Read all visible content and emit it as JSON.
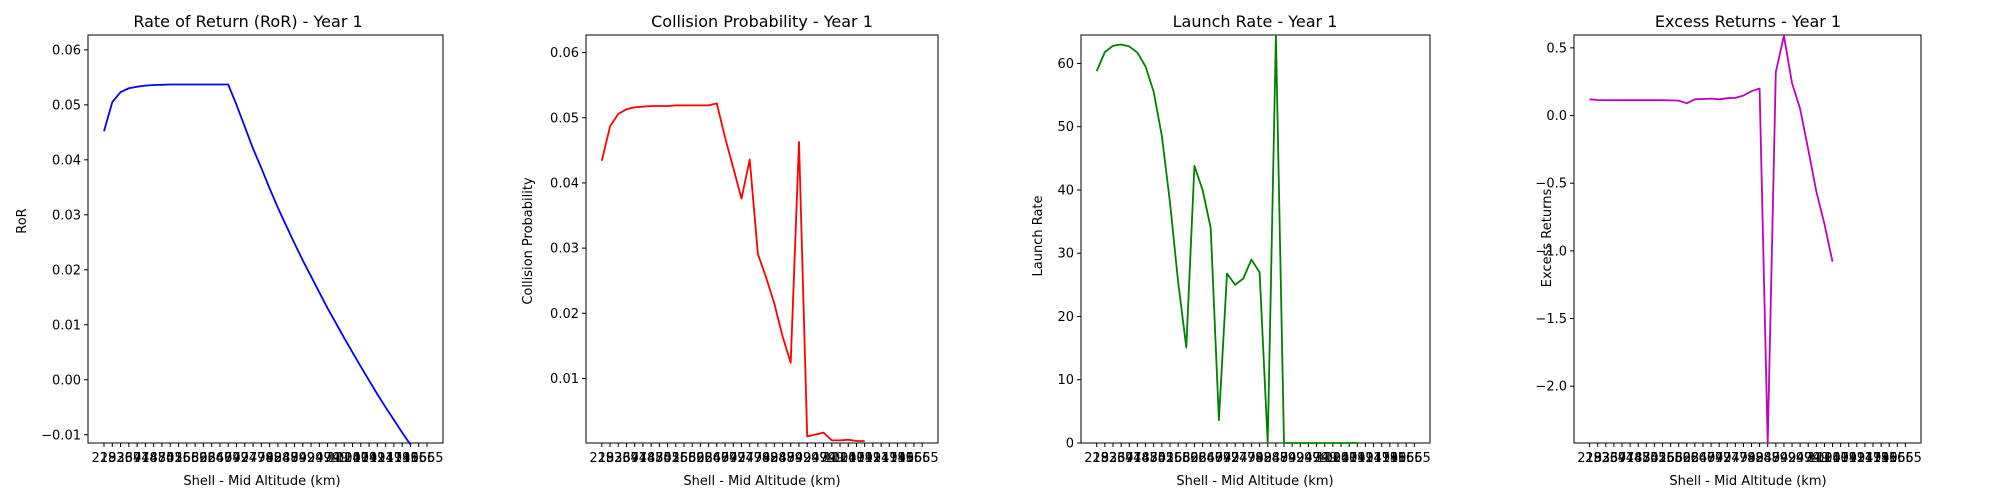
{
  "chart_data": [
    {
      "type": "line",
      "title": "Rate of Return (RoR) - Year 1",
      "xlabel": "Shell - Mid Altitude (km)",
      "ylabel": "RoR",
      "color": "#0000ff",
      "ylim": [
        -0.0115,
        0.0627
      ],
      "yticks": [
        -0.01,
        0.0,
        0.01,
        0.02,
        0.03,
        0.04,
        0.05,
        0.06
      ],
      "ytick_labels": [
        "−0.01",
        "0.00",
        "0.01",
        "0.02",
        "0.03",
        "0.04",
        "0.05",
        "0.06"
      ],
      "x": [
        218,
        264,
        310,
        356,
        402,
        448,
        494,
        540,
        586,
        632,
        678,
        724,
        770,
        816,
        862,
        908,
        954,
        1000,
        1046,
        1092,
        1138,
        1184,
        1230,
        1276,
        1322,
        1368,
        1414,
        1460,
        1506,
        1552,
        1598,
        1644,
        1690,
        1736,
        1782,
        1828,
        1874,
        1920,
        1966,
        2012
      ],
      "values": [
        0.0452,
        0.0505,
        0.0523,
        0.053,
        0.0533,
        0.0535,
        0.0536,
        0.05365,
        0.0537,
        0.0537,
        0.0537,
        0.0537,
        0.0537,
        0.0537,
        0.0537,
        0.0537,
        0.05,
        0.046,
        0.042,
        0.0385,
        0.0348,
        0.0313,
        0.028,
        0.0248,
        0.0217,
        0.0188,
        0.0159,
        0.013,
        0.0103,
        0.0076,
        0.005,
        0.0024,
        -0.0001,
        -0.0026,
        -0.005,
        -0.0073,
        -0.0096,
        -0.0118,
        null,
        null
      ],
      "xtick_labels": [
        "218",
        "293",
        "326",
        "367",
        "397",
        "418",
        "448",
        "474",
        "501",
        "526",
        "566",
        "582",
        "598",
        "624",
        "649",
        "674",
        "699",
        "724",
        "749",
        "774",
        "799",
        "824",
        "849",
        "874",
        "899",
        "924",
        "949",
        "974",
        "999",
        "1024",
        "1049",
        "1074",
        "1099",
        "1124",
        "1149",
        "1174",
        "1199",
        "1365",
        "1565",
        "1665"
      ]
    },
    {
      "type": "line",
      "title": "Collision Probability - Year 1",
      "xlabel": "Shell - Mid Altitude (km)",
      "ylabel": "Collision Probability",
      "color": "#ff0000",
      "ylim": [
        0.0001,
        0.0627
      ],
      "yticks": [
        0.01,
        0.02,
        0.03,
        0.04,
        0.05,
        0.06
      ],
      "ytick_labels": [
        "0.01",
        "0.02",
        "0.03",
        "0.04",
        "0.05",
        "0.06"
      ],
      "x": [
        218,
        264,
        310,
        356,
        402,
        448,
        494,
        540,
        586,
        632,
        678,
        724,
        770,
        816,
        862,
        908,
        954,
        1000,
        1046,
        1092,
        1138,
        1184,
        1230,
        1276,
        1322,
        1368,
        1414,
        1460,
        1506,
        1552,
        1598,
        1644,
        1690,
        1736,
        1782,
        1828,
        1874,
        1920,
        1966,
        2012
      ],
      "values": [
        0.0434,
        0.0487,
        0.0506,
        0.0513,
        0.0516,
        0.0517,
        0.0518,
        0.0518,
        0.0518,
        0.0519,
        0.0519,
        0.0519,
        0.0519,
        0.0519,
        0.0522,
        0.047,
        0.0423,
        0.0376,
        0.0436,
        0.0291,
        0.0255,
        0.0215,
        0.0165,
        0.0124,
        0.0463,
        0.0011,
        0.0014,
        0.0017,
        0.0005,
        0.0005,
        0.0006,
        0.0004,
        0.0004,
        null,
        null,
        null,
        null,
        null,
        null,
        null
      ],
      "xtick_labels": [
        "218",
        "293",
        "326",
        "367",
        "397",
        "418",
        "448",
        "474",
        "501",
        "526",
        "566",
        "582",
        "598",
        "624",
        "649",
        "674",
        "699",
        "724",
        "749",
        "774",
        "799",
        "824",
        "849",
        "874",
        "899",
        "924",
        "949",
        "974",
        "999",
        "1024",
        "1049",
        "1074",
        "1099",
        "1124",
        "1149",
        "1174",
        "1199",
        "1365",
        "1565",
        "1665"
      ]
    },
    {
      "type": "line",
      "title": "Launch Rate - Year 1",
      "xlabel": "Shell - Mid Altitude (km)",
      "ylabel": "Launch Rate",
      "color": "#008000",
      "ylim": [
        0,
        64.5
      ],
      "yticks": [
        0,
        10,
        20,
        30,
        40,
        50,
        60
      ],
      "ytick_labels": [
        "0",
        "10",
        "20",
        "30",
        "40",
        "50",
        "60"
      ],
      "x": [
        218,
        264,
        310,
        356,
        402,
        448,
        494,
        540,
        586,
        632,
        678,
        724,
        770,
        816,
        862,
        908,
        954,
        1000,
        1046,
        1092,
        1138,
        1184,
        1230,
        1276,
        1322,
        1368,
        1414,
        1460,
        1506,
        1552,
        1598,
        1644,
        1690,
        1736,
        1782,
        1828,
        1874,
        1920,
        1966,
        2012
      ],
      "values": [
        58.8,
        61.8,
        62.8,
        63.0,
        62.7,
        61.7,
        59.5,
        55.5,
        48.5,
        38.0,
        25.5,
        15.1,
        43.8,
        40.0,
        34.0,
        3.6,
        26.8,
        25.0,
        26.0,
        29.0,
        27.0,
        0.0,
        64.4,
        0.0,
        0.0,
        0.0,
        0.0,
        0.0,
        0.0,
        0.0,
        0.0,
        0.0,
        0.0,
        null,
        null,
        null,
        null,
        null,
        null,
        null
      ],
      "xtick_labels": [
        "218",
        "293",
        "326",
        "367",
        "397",
        "418",
        "448",
        "474",
        "501",
        "526",
        "566",
        "582",
        "598",
        "624",
        "649",
        "674",
        "699",
        "724",
        "749",
        "774",
        "799",
        "824",
        "849",
        "874",
        "899",
        "924",
        "949",
        "974",
        "999",
        "1024",
        "1049",
        "1074",
        "1099",
        "1124",
        "1149",
        "1174",
        "1199",
        "1365",
        "1565",
        "1665"
      ]
    },
    {
      "type": "line",
      "title": "Excess Returns - Year 1",
      "xlabel": "Shell - Mid Altitude (km)",
      "ylabel": "Excess Returns",
      "color": "#bf00bf",
      "ylim": [
        -2.42,
        0.595
      ],
      "yticks": [
        -2.0,
        -1.5,
        -1.0,
        -0.5,
        0.0,
        0.5
      ],
      "ytick_labels": [
        "−2.0",
        "−1.5",
        "−1.0",
        "−0.5",
        "0.0",
        "0.5"
      ],
      "x": [
        218,
        264,
        310,
        356,
        402,
        448,
        494,
        540,
        586,
        632,
        678,
        724,
        770,
        816,
        862,
        908,
        954,
        1000,
        1046,
        1092,
        1138,
        1184,
        1230,
        1276,
        1322,
        1368,
        1414,
        1460,
        1506,
        1552,
        1598,
        1644,
        1690,
        1736,
        1782,
        1828,
        1874,
        1920,
        1966,
        2012
      ],
      "values": [
        0.12,
        0.115,
        0.113,
        0.113,
        0.113,
        0.113,
        0.113,
        0.113,
        0.113,
        0.113,
        0.112,
        0.11,
        0.09,
        0.12,
        0.122,
        0.125,
        0.12,
        0.128,
        0.13,
        0.148,
        0.18,
        0.2,
        -2.42,
        0.32,
        0.59,
        0.24,
        0.05,
        -0.25,
        -0.56,
        -0.8,
        -1.08,
        null,
        null,
        null,
        null,
        null,
        null,
        null,
        null,
        null
      ],
      "xtick_labels": [
        "218",
        "293",
        "326",
        "367",
        "397",
        "418",
        "448",
        "474",
        "501",
        "526",
        "566",
        "582",
        "598",
        "624",
        "649",
        "674",
        "699",
        "724",
        "749",
        "774",
        "799",
        "824",
        "849",
        "874",
        "899",
        "924",
        "949",
        "974",
        "999",
        "1024",
        "1049",
        "1074",
        "1099",
        "1124",
        "1149",
        "1174",
        "1199",
        "1365",
        "1565",
        "1665"
      ]
    }
  ]
}
